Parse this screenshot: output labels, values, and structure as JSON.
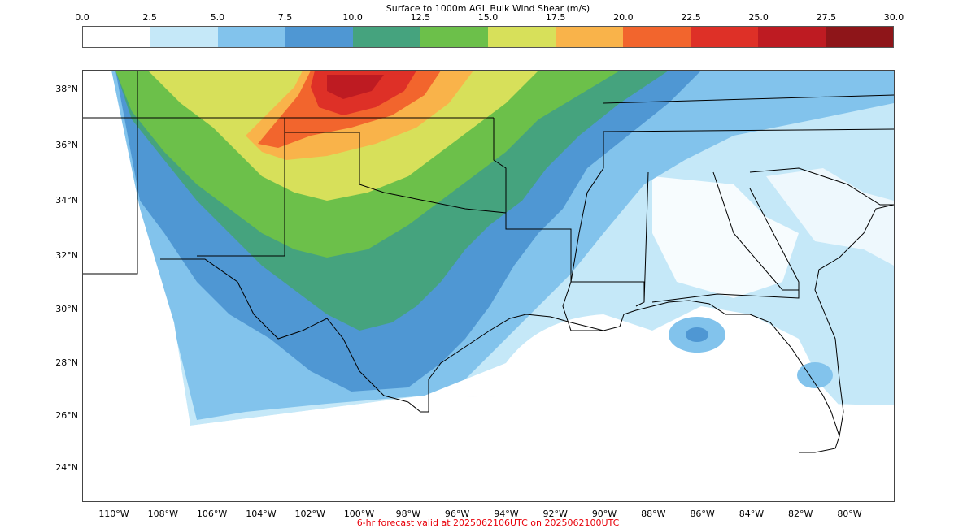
{
  "colorbar": {
    "title": "Surface to 1000m AGL Bulk Wind Shear (m/s)",
    "ticks": [
      "0.0",
      "2.5",
      "5.0",
      "7.5",
      "10.0",
      "12.5",
      "15.0",
      "17.5",
      "20.0",
      "22.5",
      "25.0",
      "27.5",
      "30.0"
    ],
    "colors": [
      "#ffffff",
      "#c5e8f8",
      "#82c3ec",
      "#4f97d3",
      "#45a37e",
      "#6cc04a",
      "#d7e05a",
      "#f9b34a",
      "#f2652d",
      "#de3027",
      "#be1b22",
      "#8e1519"
    ]
  },
  "map": {
    "lat_labels": [
      "38°N",
      "36°N",
      "34°N",
      "32°N",
      "30°N",
      "28°N",
      "26°N",
      "24°N"
    ],
    "lon_labels": [
      "110°W",
      "108°W",
      "106°W",
      "104°W",
      "102°W",
      "100°W",
      "98°W",
      "96°W",
      "94°W",
      "92°W",
      "90°W",
      "88°W",
      "86°W",
      "84°W",
      "82°W",
      "80°W"
    ]
  },
  "footer": "6-hr forecast valid at 2025062106UTC on 2025062100UTC"
}
